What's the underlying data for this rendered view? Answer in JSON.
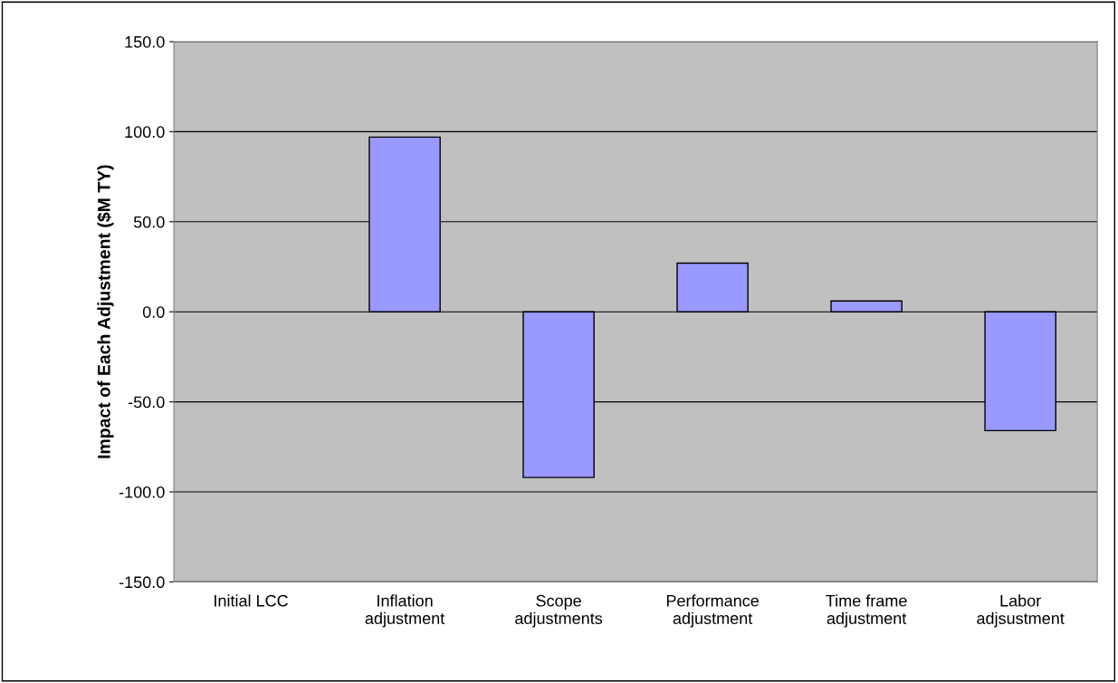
{
  "chart_data": {
    "type": "bar",
    "ylabel": "Impact of Each Adjustment ($M TY)",
    "categories": [
      "Initial LCC",
      "Inflation\nadjustment",
      "Scope\nadjustments",
      "Performance\nadjustment",
      "Time frame\nadjustment",
      "Labor\nadjsustment"
    ],
    "values": [
      null,
      97,
      -92,
      27,
      6,
      -66
    ],
    "color": "#9999ff",
    "ylim": [
      -150,
      150
    ],
    "yticks": [
      {
        "value": -150,
        "label": "-150.0"
      },
      {
        "value": -100,
        "label": "-100.0"
      },
      {
        "value": -50,
        "label": "-50.0"
      },
      {
        "value": 0,
        "label": "0.0"
      },
      {
        "value": 50,
        "label": "50.0"
      },
      {
        "value": 100,
        "label": "100.0"
      },
      {
        "value": 150,
        "label": "150.0"
      }
    ],
    "grid": "y"
  }
}
